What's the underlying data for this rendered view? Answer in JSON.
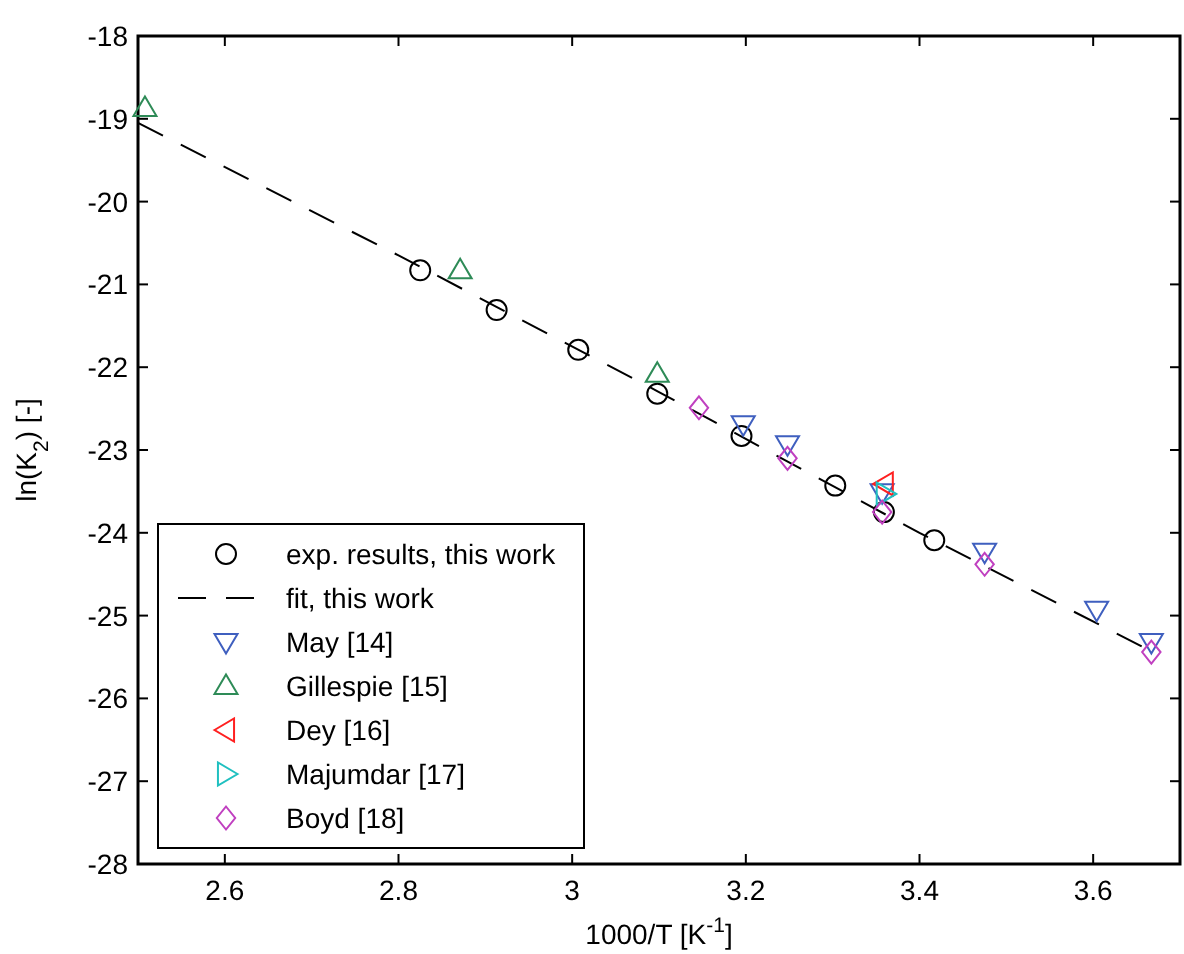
{
  "chart_data": {
    "type": "scatter",
    "xlabel": "1000/T [K$^{-1}$]",
    "ylabel": "ln(K$_{2}$) [-]",
    "xlim": [
      2.5,
      3.7
    ],
    "ylim": [
      -28,
      -18
    ],
    "xticks": [
      2.6,
      2.8,
      3,
      3.2,
      3.4,
      3.6
    ],
    "yticks": [
      -28,
      -27,
      -26,
      -25,
      -24,
      -23,
      -22,
      -21,
      -20,
      -19,
      -18
    ],
    "grid": false,
    "legend": "bottom left",
    "series": [
      {
        "name": "exp. results, this work",
        "color": "#000000",
        "marker": "circle",
        "x": [
          2.825,
          2.913,
          3.007,
          3.098,
          3.195,
          3.303,
          3.359,
          3.417
        ],
        "values": [
          -20.83,
          -21.31,
          -21.79,
          -22.32,
          -22.83,
          -23.43,
          -23.75,
          -24.09
        ]
      },
      {
        "name": "fit, this work",
        "type": "line",
        "line_style": "dashed",
        "marker": "none",
        "color": "#000000",
        "x": [
          2.5,
          2.8,
          3.1,
          3.4,
          3.665
        ],
        "values": [
          -19.05,
          -20.65,
          -22.3,
          -24.0,
          -25.42
        ]
      },
      {
        "name": "May [14]",
        "color": "#3f5fbf",
        "marker": "triangle-down",
        "x": [
          3.197,
          3.248,
          3.357,
          3.475,
          3.604,
          3.667
        ],
        "values": [
          -22.69,
          -22.93,
          -23.51,
          -24.23,
          -24.93,
          -25.32
        ]
      },
      {
        "name": "Gillespie [15]",
        "color": "#2e8b57",
        "marker": "triangle",
        "x": [
          2.508,
          2.871,
          3.098
        ],
        "values": [
          -18.87,
          -20.83,
          -22.08
        ]
      },
      {
        "name": "Dey [16]",
        "color": "#ff2020",
        "marker": "triangle-left",
        "x": [
          3.36
        ],
        "values": [
          -23.41
        ]
      },
      {
        "name": "Majumdar [17]",
        "color": "#20c0c0",
        "marker": "triangle-right",
        "x": [
          3.36
        ],
        "values": [
          -23.53
        ]
      },
      {
        "name": "Boyd [18]",
        "color": "#c040c0",
        "marker": "diamond",
        "x": [
          3.146,
          3.248,
          3.357,
          3.475,
          3.667
        ],
        "values": [
          -22.49,
          -23.1,
          -23.75,
          -24.38,
          -25.44
        ]
      }
    ]
  }
}
